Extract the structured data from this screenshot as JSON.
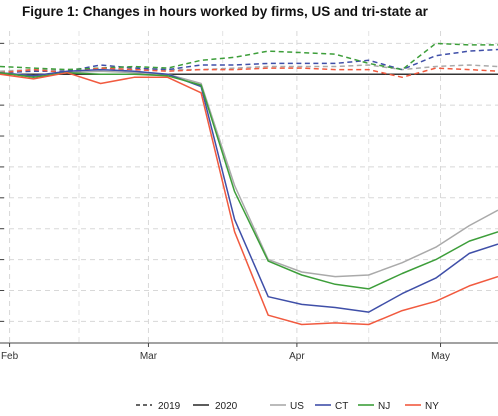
{
  "chart_data": {
    "type": "line",
    "title": "Figure 1: Changes in hours worked by firms, US and tri-state ar",
    "xlabel": "",
    "ylabel": "",
    "x_tick_labels": [
      {
        "label": "Feb",
        "day": 0
      },
      {
        "label": "Mar",
        "day": 29
      },
      {
        "label": "Apr",
        "day": 60
      },
      {
        "label": "May",
        "day": 90
      }
    ],
    "y_gridlines": [
      10,
      0,
      -10,
      -20,
      -30,
      -40,
      -50,
      -60,
      -70,
      -80
    ],
    "baseline": 0,
    "xlim": [
      -2,
      102
    ],
    "ylim": [
      -87,
      14
    ],
    "grid": true,
    "legend_position": "bottom",
    "legend": {
      "linetypes": [
        {
          "label": "2019",
          "style": "dashed"
        },
        {
          "label": "2020",
          "style": "solid"
        }
      ],
      "places": [
        {
          "label": "US",
          "color": "#aaaaaa"
        },
        {
          "label": "CT",
          "color": "#3f4fa8"
        },
        {
          "label": "NJ",
          "color": "#3d9e3a"
        },
        {
          "label": "NY",
          "color": "#f15a3f"
        }
      ]
    },
    "x": [
      -2,
      5,
      12,
      19,
      26,
      33,
      40,
      47,
      54,
      61,
      68,
      75,
      82,
      89,
      96,
      102
    ],
    "series": [
      {
        "name": "US",
        "year": "2019",
        "color": "#aaaaaa",
        "style": "dashed",
        "values": [
          1,
          1.5,
          1.5,
          2,
          1.5,
          1.5,
          1.5,
          2,
          2.5,
          2.5,
          2.5,
          3,
          1.5,
          2.5,
          3,
          2.5
        ]
      },
      {
        "name": "CT",
        "year": "2019",
        "color": "#3f4fa8",
        "style": "dashed",
        "values": [
          0.5,
          1,
          1,
          3,
          2,
          1.5,
          3,
          3,
          3.5,
          3.5,
          3.5,
          4.5,
          1.5,
          6,
          7.5,
          8
        ]
      },
      {
        "name": "NJ",
        "year": "2019",
        "color": "#3d9e3a",
        "style": "dashed",
        "values": [
          2.5,
          2,
          1.5,
          2,
          2.5,
          2,
          4.5,
          5.5,
          7.5,
          7,
          6.5,
          3.5,
          1.5,
          10,
          9.5,
          9.5
        ]
      },
      {
        "name": "NY",
        "year": "2019",
        "color": "#f15a3f",
        "style": "dashed",
        "values": [
          0.5,
          1.5,
          0.5,
          2,
          1.5,
          1,
          1.5,
          1.5,
          2,
          2,
          1.5,
          1.5,
          -1,
          2,
          1.5,
          1
        ]
      },
      {
        "name": "US",
        "year": "2020",
        "color": "#aaaaaa",
        "style": "solid",
        "values": [
          0.5,
          -0.5,
          0.5,
          1,
          0.5,
          0,
          -3,
          -36,
          -60,
          -64,
          -65.5,
          -65,
          -61,
          -56,
          -49,
          -44
        ]
      },
      {
        "name": "CT",
        "year": "2020",
        "color": "#3f4fa8",
        "style": "solid",
        "values": [
          0.5,
          -0.5,
          1,
          1.5,
          1,
          0,
          -4,
          -47,
          -72,
          -74.5,
          -75.5,
          -77,
          -71,
          -66,
          -58,
          -55
        ]
      },
      {
        "name": "NJ",
        "year": "2020",
        "color": "#3d9e3a",
        "style": "solid",
        "values": [
          0.5,
          -1,
          0.5,
          0,
          0,
          -0.5,
          -3.5,
          -38,
          -60.5,
          -65,
          -68,
          -69.5,
          -64.5,
          -60,
          -54,
          -51
        ]
      },
      {
        "name": "NY",
        "year": "2020",
        "color": "#f15a3f",
        "style": "solid",
        "values": [
          0,
          -1.5,
          0.5,
          -3,
          -1,
          -1,
          -6,
          -51,
          -78,
          -81,
          -80.5,
          -81,
          -76.5,
          -73.5,
          -68.5,
          -65.5
        ]
      }
    ]
  }
}
